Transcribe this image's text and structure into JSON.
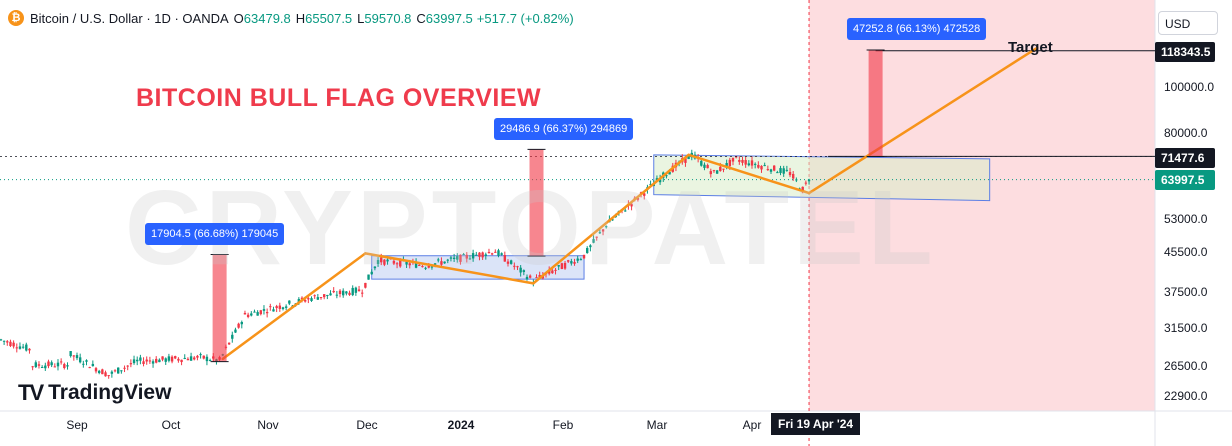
{
  "header": {
    "symbol_icon": "bitcoin-icon",
    "symbol_text": "Bitcoin / U.S. Dollar · 1D · OANDA",
    "open_label": "O",
    "open_value": "63479.8",
    "high_label": "H",
    "high_value": "65507.5",
    "low_label": "L",
    "low_value": "59570.8",
    "close_label": "C",
    "close_value": "63997.5",
    "change": "+517.7 (+0.82%)"
  },
  "title": "BITCOIN BULL FLAG OVERVIEW",
  "watermark": "CRYPTOPATEL",
  "logo": {
    "mark": "TV",
    "text": "TradingView"
  },
  "currency": "USD",
  "crosshair_date": "Fri 19 Apr '24",
  "target_label": "Target",
  "measurements": [
    {
      "text": "17904.5 (66.68%) 179045"
    },
    {
      "text": "29486.9 (66.37%) 294869"
    },
    {
      "text": "47252.8 (66.13%) 472528"
    }
  ],
  "price_tags": [
    {
      "text": "118343.5",
      "color": "#131722"
    },
    {
      "text": "71477.6",
      "color": "#131722"
    },
    {
      "text": "63997.5",
      "color": "#089981"
    }
  ],
  "colors": {
    "up": "#089981",
    "down": "#f23645",
    "trend": "#f7931a",
    "flag_fill": "#c8d6f5",
    "flag_border": "#5b7ee5",
    "projection": "#fddde0"
  },
  "chart_data": {
    "type": "candlestick",
    "symbol": "Bitcoin / U.S. Dollar",
    "interval": "1D",
    "y_scale": "log",
    "y_ticks": [
      22900.0,
      26500.0,
      31500.0,
      37500.0,
      45500.0,
      53000.0,
      80000.0,
      100000.0
    ],
    "y_tick_labels": [
      "22900.0",
      "26500.0",
      "31500.0",
      "37500.0",
      "45500.0",
      "53000.0",
      "80000.0",
      "100000.0"
    ],
    "x_ticks": [
      "Sep",
      "Oct",
      "Nov",
      "Dec",
      "2024",
      "Feb",
      "Mar",
      "Apr"
    ],
    "x_tick_dates": [
      "2023-09-01",
      "2023-10-01",
      "2023-11-01",
      "2023-12-01",
      "2024-01-01",
      "2024-02-01",
      "2024-03-01",
      "2024-04-01"
    ],
    "x_range": [
      "2023-08-08",
      "2024-07-20"
    ],
    "last_candle": {
      "date": "2024-04-19",
      "open": 63479.8,
      "high": 65507.5,
      "low": 59570.8,
      "close": 63997.5
    },
    "horizontal_levels": [
      {
        "value": 118343.5,
        "label": "Target"
      },
      {
        "value": 71477.6
      },
      {
        "value": 63997.5,
        "style": "dotted"
      }
    ],
    "trend_lines": [
      [
        [
          "2023-10-17",
          27200
        ],
        [
          "2023-12-01",
          45000
        ]
      ],
      [
        [
          "2023-12-01",
          45000
        ],
        [
          "2024-01-23",
          39000
        ]
      ],
      [
        [
          "2024-01-23",
          39000
        ],
        [
          "2024-03-12",
          72000
        ]
      ],
      [
        [
          "2024-03-12",
          72000
        ],
        [
          "2024-04-19",
          60000
        ]
      ],
      [
        [
          "2024-04-19",
          60000
        ],
        [
          "2024-06-30",
          120000
        ]
      ]
    ],
    "flag_ranges": [
      {
        "start": "2023-12-03",
        "end": "2024-02-08",
        "top": 44500,
        "bottom": 39800
      },
      {
        "start": "2024-03-01",
        "end": "2024-06-15",
        "top": 72000,
        "bottom": 59000
      }
    ],
    "measure_bars": [
      {
        "date": "2023-10-16",
        "from": 26850,
        "to": 44755,
        "label": "17904.5 (66.68%) 179045"
      },
      {
        "date": "2024-01-24",
        "from": 44430,
        "to": 73917,
        "label": "29486.9 (66.37%) 294869"
      },
      {
        "date": "2024-05-10",
        "from": 71454,
        "to": 118707,
        "label": "47252.8 (66.13%) 472528"
      }
    ],
    "projection_start": "2024-04-19"
  }
}
